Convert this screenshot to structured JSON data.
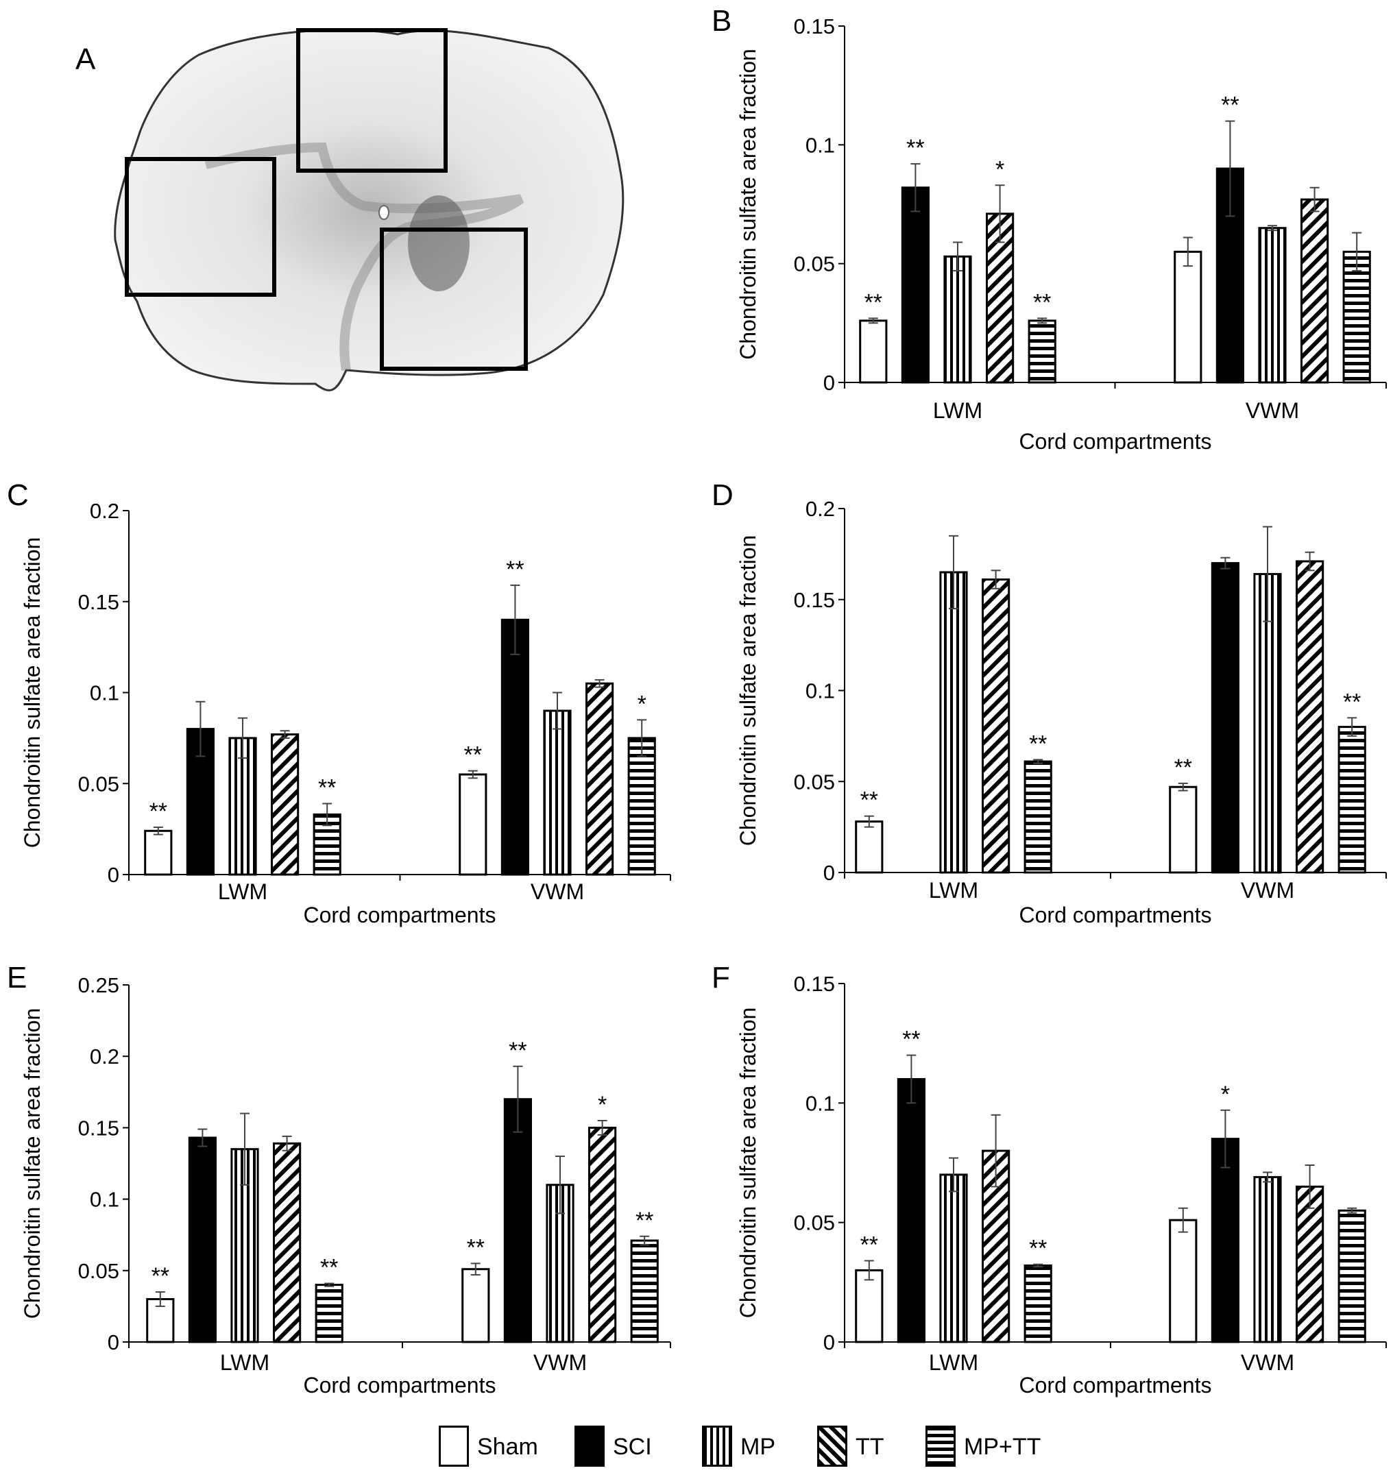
{
  "panels": [
    {
      "id": "A",
      "letter": "A"
    },
    {
      "id": "B",
      "letter": "B"
    },
    {
      "id": "C",
      "letter": "C"
    },
    {
      "id": "D",
      "letter": "D"
    },
    {
      "id": "E",
      "letter": "E"
    },
    {
      "id": "F",
      "letter": "F"
    }
  ],
  "legend": [
    {
      "name": "Sham",
      "fill": "white"
    },
    {
      "name": "SCI",
      "fill": "black"
    },
    {
      "name": "MP",
      "fill": "vertical"
    },
    {
      "name": "TT",
      "fill": "diagonal"
    },
    {
      "name": "MP+TT",
      "fill": "horizontal"
    }
  ],
  "colors": {
    "bar_outline": "#000000",
    "solid": "#000000",
    "error_bar": "#333333"
  },
  "chart_data": [
    {
      "panel": "B",
      "type": "bar",
      "ylabel": "Chondroitin sulfate area fraction",
      "xlabel": "Cord compartments",
      "ylim": [
        0,
        0.15
      ],
      "yticks": [
        "0",
        "0.05",
        "0.1",
        "0.15"
      ],
      "ytick_values": [
        0,
        0.05,
        0.1,
        0.15
      ],
      "categories": [
        "LWM",
        "VWM"
      ],
      "series": [
        {
          "name": "Sham",
          "values": [
            0.026,
            0.055
          ],
          "errors": [
            0.001,
            0.006
          ],
          "sig": [
            "**",
            ""
          ]
        },
        {
          "name": "SCI",
          "values": [
            0.082,
            0.09
          ],
          "errors": [
            0.01,
            0.02
          ],
          "sig": [
            "**",
            "**"
          ]
        },
        {
          "name": "MP",
          "values": [
            0.053,
            0.065
          ],
          "errors": [
            0.006,
            0.001
          ],
          "sig": [
            "",
            ""
          ]
        },
        {
          "name": "TT",
          "values": [
            0.071,
            0.077
          ],
          "errors": [
            0.012,
            0.005
          ],
          "sig": [
            "*",
            ""
          ]
        },
        {
          "name": "MP+TT",
          "values": [
            0.026,
            0.055
          ],
          "errors": [
            0.001,
            0.008
          ],
          "sig": [
            "**",
            ""
          ]
        }
      ]
    },
    {
      "panel": "C",
      "type": "bar",
      "ylabel": "Chondroitin sulfate area fraction",
      "xlabel": "Cord compartments",
      "ylim": [
        0,
        0.2
      ],
      "yticks": [
        "0",
        "0.05",
        "0.1",
        "0.15",
        "0.2"
      ],
      "ytick_values": [
        0,
        0.05,
        0.1,
        0.15,
        0.2
      ],
      "categories": [
        "LWM",
        "VWM"
      ],
      "series": [
        {
          "name": "Sham",
          "values": [
            0.024,
            0.055
          ],
          "errors": [
            0.002,
            0.002
          ],
          "sig": [
            "**",
            "**"
          ]
        },
        {
          "name": "SCI",
          "values": [
            0.08,
            0.14
          ],
          "errors": [
            0.015,
            0.019
          ],
          "sig": [
            "",
            "**"
          ]
        },
        {
          "name": "MP",
          "values": [
            0.075,
            0.09
          ],
          "errors": [
            0.011,
            0.01
          ],
          "sig": [
            "",
            ""
          ]
        },
        {
          "name": "TT",
          "values": [
            0.077,
            0.105
          ],
          "errors": [
            0.002,
            0.002
          ],
          "sig": [
            "",
            ""
          ]
        },
        {
          "name": "MP+TT",
          "values": [
            0.033,
            0.075
          ],
          "errors": [
            0.006,
            0.01
          ],
          "sig": [
            "**",
            "*"
          ]
        }
      ]
    },
    {
      "panel": "D",
      "type": "bar",
      "ylabel": "Chondroitin sulfate area fraction",
      "xlabel": "Cord compartments",
      "ylim": [
        0,
        0.2
      ],
      "yticks": [
        "0",
        "0.05",
        "0.1",
        "0.15",
        "0.2"
      ],
      "ytick_values": [
        0,
        0.05,
        0.1,
        0.15,
        0.2
      ],
      "categories": [
        "LWM",
        "VWM"
      ],
      "series": [
        {
          "name": "Sham",
          "values": [
            0.028,
            0.047
          ],
          "errors": [
            0.003,
            0.002
          ],
          "sig": [
            "**",
            "**"
          ]
        },
        {
          "name": "SCI",
          "values": [
            0,
            0.17
          ],
          "errors": [
            0,
            0.003
          ],
          "sig": [
            "",
            ""
          ]
        },
        {
          "name": "MP",
          "values": [
            0.165,
            0.164
          ],
          "errors": [
            0.02,
            0.026
          ],
          "sig": [
            "",
            ""
          ]
        },
        {
          "name": "TT",
          "values": [
            0.161,
            0.171
          ],
          "errors": [
            0.005,
            0.005
          ],
          "sig": [
            "",
            ""
          ]
        },
        {
          "name": "MP+TT",
          "values": [
            0.061,
            0.08
          ],
          "errors": [
            0.001,
            0.005
          ],
          "sig": [
            "**",
            "**"
          ]
        }
      ]
    },
    {
      "panel": "E",
      "type": "bar",
      "ylabel": "Chondroitin sulfate area fraction",
      "xlabel": "Cord compartments",
      "ylim": [
        0,
        0.25
      ],
      "yticks": [
        "0",
        "0.05",
        "0.1",
        "0.15",
        "0.2",
        "0.25"
      ],
      "ytick_values": [
        0,
        0.05,
        0.1,
        0.15,
        0.2,
        0.25
      ],
      "categories": [
        "LWM",
        "VWM"
      ],
      "series": [
        {
          "name": "Sham",
          "values": [
            0.03,
            0.051
          ],
          "errors": [
            0.005,
            0.004
          ],
          "sig": [
            "**",
            "**"
          ]
        },
        {
          "name": "SCI",
          "values": [
            0.143,
            0.17
          ],
          "errors": [
            0.006,
            0.023
          ],
          "sig": [
            "",
            "**"
          ]
        },
        {
          "name": "MP",
          "values": [
            0.135,
            0.11
          ],
          "errors": [
            0.025,
            0.02
          ],
          "sig": [
            "",
            ""
          ]
        },
        {
          "name": "TT",
          "values": [
            0.139,
            0.15
          ],
          "errors": [
            0.005,
            0.005
          ],
          "sig": [
            "",
            "*"
          ]
        },
        {
          "name": "MP+TT",
          "values": [
            0.04,
            0.071
          ],
          "errors": [
            0.001,
            0.003
          ],
          "sig": [
            "**",
            "**"
          ]
        }
      ]
    },
    {
      "panel": "F",
      "type": "bar",
      "ylabel": "Chondroitin sulfate area fraction",
      "xlabel": "Cord compartments",
      "ylim": [
        0,
        0.15
      ],
      "yticks": [
        "0",
        "0.05",
        "0.1",
        "0.15"
      ],
      "ytick_values": [
        0,
        0.05,
        0.1,
        0.15
      ],
      "categories": [
        "LWM",
        "VWM"
      ],
      "series": [
        {
          "name": "Sham",
          "values": [
            0.03,
            0.051
          ],
          "errors": [
            0.004,
            0.005
          ],
          "sig": [
            "**",
            ""
          ]
        },
        {
          "name": "SCI",
          "values": [
            0.11,
            0.085
          ],
          "errors": [
            0.01,
            0.012
          ],
          "sig": [
            "**",
            "*"
          ]
        },
        {
          "name": "MP",
          "values": [
            0.07,
            0.069
          ],
          "errors": [
            0.007,
            0.002
          ],
          "sig": [
            "",
            ""
          ]
        },
        {
          "name": "TT",
          "values": [
            0.08,
            0.065
          ],
          "errors": [
            0.015,
            0.009
          ],
          "sig": [
            "",
            ""
          ]
        },
        {
          "name": "MP+TT",
          "values": [
            0.032,
            0.055
          ],
          "errors": [
            0.0005,
            0.001
          ],
          "sig": [
            "**",
            ""
          ]
        }
      ]
    }
  ]
}
